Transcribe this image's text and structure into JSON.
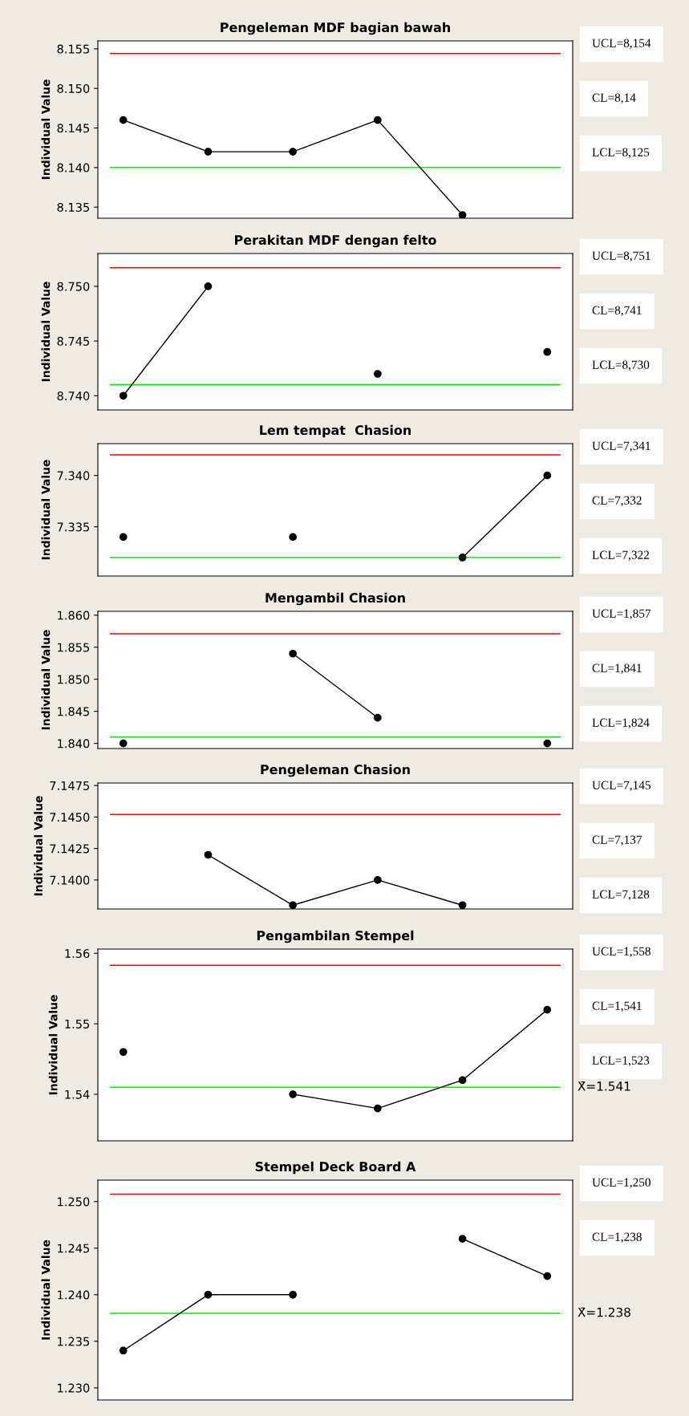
{
  "chart_data": [
    {
      "type": "line",
      "title": "Pengeleman MDF bagian bawah",
      "ylabel": "Individual Value",
      "categories": [
        null,
        null,
        null,
        null,
        null,
        null
      ],
      "tick_labels": "y",
      "marker": "circle",
      "series": [
        {
          "color": "#000000",
          "values": [
            8.146,
            8.142,
            8.142,
            8.146,
            8.134,
            null
          ]
        }
      ],
      "ylim": [
        8.1336,
        8.156
      ],
      "yticks": [
        {
          "value": 8.135,
          "label": "8.135"
        },
        {
          "value": 8.14,
          "label": "8.140"
        },
        {
          "value": 8.145,
          "label": "8.145"
        },
        {
          "value": 8.15,
          "label": "8.150"
        },
        {
          "value": 8.155,
          "label": "8.155"
        }
      ],
      "ref_lines": [
        {
          "axis": "y",
          "value": 8.1544,
          "color": "#ff0000"
        },
        {
          "axis": "y",
          "value": 8.14,
          "color": "#00ee00"
        }
      ],
      "annotations": [
        "UCL=8,154",
        "CL=8,14",
        "LCL=8,125"
      ]
    },
    {
      "type": "line",
      "title": "Perakitan MDF dengan felto",
      "ylabel": "Individual Value",
      "categories": [
        null,
        null,
        null,
        null,
        null,
        null
      ],
      "tick_labels": "y",
      "marker": "circle",
      "series": [
        {
          "color": "#000000",
          "values": [
            8.74,
            8.75,
            null,
            8.742,
            null,
            8.744
          ]
        }
      ],
      "ylim": [
        8.7387,
        8.753
      ],
      "yticks": [
        {
          "value": 8.74,
          "label": "8.740"
        },
        {
          "value": 8.745,
          "label": "8.745"
        },
        {
          "value": 8.75,
          "label": "8.750"
        }
      ],
      "ref_lines": [
        {
          "axis": "y",
          "value": 8.7517,
          "color": "#ff0000"
        },
        {
          "axis": "y",
          "value": 8.741,
          "color": "#00ee00"
        }
      ],
      "annotations": [
        "UCL=8,751",
        "CL=8,741",
        "LCL=8,730"
      ]
    },
    {
      "type": "line",
      "title": "Lem tempat  Chasion",
      "ylabel": "Individual Value",
      "categories": [
        null,
        null,
        null,
        null,
        null,
        null
      ],
      "tick_labels": "y",
      "marker": "circle",
      "series": [
        {
          "color": "#000000",
          "values": [
            7.334,
            null,
            7.334,
            null,
            7.332,
            7.34
          ]
        }
      ],
      "ylim": [
        7.3302,
        7.3431
      ],
      "yticks": [
        {
          "value": 7.335,
          "label": "7.335"
        },
        {
          "value": 7.34,
          "label": "7.340"
        }
      ],
      "ref_lines": [
        {
          "axis": "y",
          "value": 7.342,
          "color": "#ff0000"
        },
        {
          "axis": "y",
          "value": 7.332,
          "color": "#00ee00"
        }
      ],
      "annotations": [
        "UCL=7,341",
        "CL=7,332",
        "LCL=7,322"
      ]
    },
    {
      "type": "line",
      "title": "Mengambil Chasion",
      "ylabel": "Individual Value",
      "categories": [
        null,
        null,
        null,
        null,
        null,
        null
      ],
      "tick_labels": "y",
      "marker": "circle",
      "series": [
        {
          "color": "#000000",
          "values": [
            1.84,
            null,
            1.854,
            1.844,
            null,
            1.84
          ]
        }
      ],
      "ylim": [
        1.8392,
        1.8606
      ],
      "yticks": [
        {
          "value": 1.84,
          "label": "1.840"
        },
        {
          "value": 1.845,
          "label": "1.845"
        },
        {
          "value": 1.85,
          "label": "1.850"
        },
        {
          "value": 1.855,
          "label": "1.855"
        },
        {
          "value": 1.86,
          "label": "1.860"
        }
      ],
      "ref_lines": [
        {
          "axis": "y",
          "value": 1.8571,
          "color": "#ff0000"
        },
        {
          "axis": "y",
          "value": 1.841,
          "color": "#00ee00"
        }
      ],
      "annotations": [
        "UCL=1,857",
        "CL=1,841",
        "LCL=1,824"
      ]
    },
    {
      "type": "line",
      "title": "Pengeleman Chasion",
      "ylabel": "Individual Value",
      "categories": [
        null,
        null,
        null,
        null,
        null,
        null
      ],
      "tick_labels": "y",
      "marker": "circle",
      "series": [
        {
          "color": "#000000",
          "values": [
            null,
            7.142,
            7.138,
            7.14,
            7.138,
            null
          ]
        }
      ],
      "ylim": [
        7.1377,
        7.1477
      ],
      "yticks": [
        {
          "value": 7.14,
          "label": "7.1400"
        },
        {
          "value": 7.1425,
          "label": "7.1425"
        },
        {
          "value": 7.145,
          "label": "7.1450"
        },
        {
          "value": 7.1475,
          "label": "7.1475"
        }
      ],
      "ref_lines": [
        {
          "axis": "y",
          "value": 7.1452,
          "color": "#ff0000"
        }
      ],
      "annotations": [
        "UCL=7,145",
        "CL=7,137",
        "LCL=7,128"
      ]
    },
    {
      "type": "line",
      "title": "Pengambilan Stempel",
      "ylabel": "Individual Value",
      "categories": [
        null,
        null,
        null,
        null,
        null,
        null
      ],
      "tick_labels": "y",
      "marker": "circle",
      "series": [
        {
          "color": "#000000",
          "values": [
            1.546,
            null,
            1.54,
            1.538,
            1.542,
            1.552
          ]
        }
      ],
      "ylim": [
        1.5334,
        1.5606
      ],
      "yticks": [
        1.54,
        1.55,
        1.56
      ],
      "ref_lines": [
        {
          "axis": "y",
          "value": 1.5583,
          "color": "#ff0000"
        },
        {
          "axis": "y",
          "value": 1.541,
          "color": "#00ee00",
          "label": "X̄=1.541"
        }
      ],
      "annotations": [
        "UCL=1,558",
        "CL=1,541",
        "LCL=1,523"
      ]
    },
    {
      "type": "line",
      "title": "Stempel Deck Board A",
      "ylabel": "Individual Value",
      "categories": [
        null,
        null,
        null,
        null,
        null,
        null
      ],
      "tick_labels": "y",
      "marker": "circle",
      "series": [
        {
          "color": "#000000",
          "values": [
            1.234,
            1.24,
            1.24,
            null,
            1.246,
            1.242
          ]
        }
      ],
      "ylim": [
        1.2287,
        1.2523
      ],
      "yticks": [
        {
          "value": 1.23,
          "label": "1.230"
        },
        {
          "value": 1.235,
          "label": "1.235"
        },
        {
          "value": 1.24,
          "label": "1.240"
        },
        {
          "value": 1.245,
          "label": "1.245"
        },
        {
          "value": 1.25,
          "label": "1.250"
        }
      ],
      "ref_lines": [
        {
          "axis": "y",
          "value": 1.2508,
          "color": "#ff0000"
        },
        {
          "axis": "y",
          "value": 1.238,
          "color": "#00ee00",
          "label": "X̄=1.238"
        }
      ],
      "annotations": [
        "UCL=1,250",
        "CL=1,238"
      ]
    }
  ]
}
